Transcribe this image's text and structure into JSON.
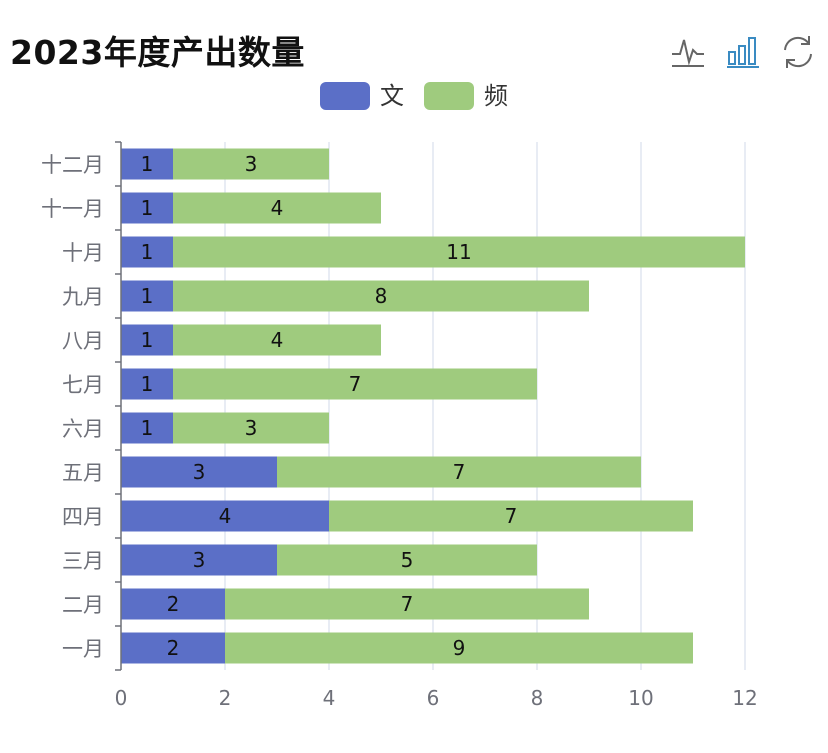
{
  "title": "2023年度产出数量",
  "toolbox": {
    "icons": [
      "line-chart-icon",
      "bar-chart-icon",
      "refresh-icon"
    ],
    "active_color": "#3a8bc2",
    "inactive_color": "#666666"
  },
  "legend": [
    {
      "name": "文",
      "color": "#5b6fc7"
    },
    {
      "name": "频",
      "color": "#9fcb7e"
    }
  ],
  "chart_data": {
    "type": "bar",
    "orientation": "horizontal",
    "stacked": true,
    "categories": [
      "一月",
      "二月",
      "三月",
      "四月",
      "五月",
      "六月",
      "七月",
      "八月",
      "九月",
      "十月",
      "十一月",
      "十二月"
    ],
    "series": [
      {
        "name": "文",
        "color": "#5b6fc7",
        "values": [
          2,
          2,
          3,
          4,
          3,
          1,
          1,
          1,
          1,
          1,
          1,
          1
        ]
      },
      {
        "name": "频",
        "color": "#9fcb7e",
        "values": [
          9,
          7,
          5,
          7,
          7,
          3,
          7,
          4,
          8,
          11,
          4,
          3
        ]
      }
    ],
    "x_ticks": [
      "0",
      "2",
      "4",
      "6",
      "8",
      "10",
      "12"
    ],
    "xlim": [
      0,
      12
    ],
    "grid": true,
    "legend_position": "top-center",
    "data_labels": true
  }
}
